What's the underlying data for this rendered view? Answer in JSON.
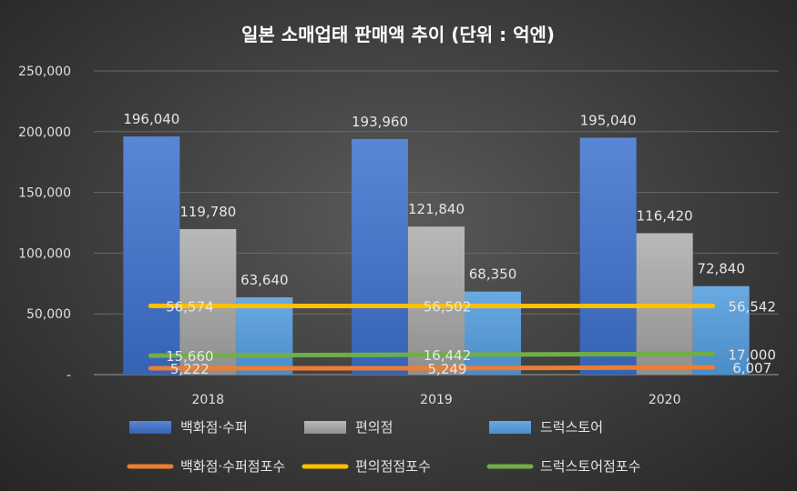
{
  "chart_data": {
    "type": "bar",
    "title": "일본 소매업태 판매액 추이 (단위 : 억엔)",
    "categories": [
      "2018",
      "2019",
      "2020"
    ],
    "ylim": [
      0,
      250000
    ],
    "y_ticks": [
      0,
      50000,
      100000,
      150000,
      200000,
      250000
    ],
    "y_tick_labels": [
      "-",
      "50,000",
      "100,000",
      "150,000",
      "200,000",
      "250,000"
    ],
    "grid": true,
    "legend_position": "bottom",
    "series": [
      {
        "name": "백화점·수퍼",
        "kind": "bar",
        "color": "#4472c4",
        "values": [
          196040,
          193960,
          195040
        ],
        "labels": [
          "196,040",
          "193,960",
          "195,040"
        ]
      },
      {
        "name": "편의점",
        "kind": "bar",
        "color": "#a5a5a5",
        "values": [
          119780,
          121840,
          116420
        ],
        "labels": [
          "119,780",
          "121,840",
          "116,420"
        ]
      },
      {
        "name": "드럭스토어",
        "kind": "bar",
        "color": "#5b9bd5",
        "values": [
          63640,
          68350,
          72840
        ],
        "labels": [
          "63,640",
          "68,350",
          "72,840"
        ]
      },
      {
        "name": "백화점·수퍼점포수",
        "kind": "line",
        "color": "#ed7d31",
        "values": [
          5222,
          5249,
          6007
        ],
        "labels": [
          "5,222",
          "5,249",
          "6,007"
        ]
      },
      {
        "name": "편의점점포수",
        "kind": "line",
        "color": "#ffc000",
        "values": [
          56574,
          56502,
          56542
        ],
        "labels": [
          "56,574",
          "56,502",
          "56,542"
        ]
      },
      {
        "name": "드럭스토어점포수",
        "kind": "line",
        "color": "#70ad47",
        "values": [
          15660,
          16442,
          17000
        ],
        "labels": [
          "15,660",
          "16,442",
          "17,000"
        ]
      }
    ]
  }
}
